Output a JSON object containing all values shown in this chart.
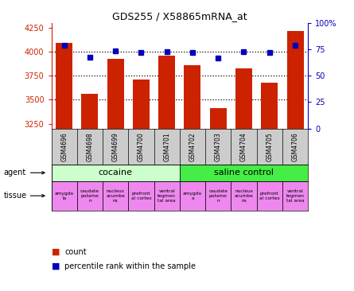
{
  "title": "GDS255 / X58865mRNA_at",
  "samples": [
    "GSM4696",
    "GSM4698",
    "GSM4699",
    "GSM4700",
    "GSM4701",
    "GSM4702",
    "GSM4703",
    "GSM4704",
    "GSM4705",
    "GSM4706"
  ],
  "counts": [
    4095,
    3560,
    3930,
    3710,
    3960,
    3860,
    3415,
    3830,
    3680,
    4215
  ],
  "percentiles": [
    79,
    68,
    74,
    72,
    73,
    72,
    67,
    73,
    72,
    79
  ],
  "ylim_left": [
    3200,
    4300
  ],
  "ylim_right": [
    0,
    100
  ],
  "yticks_left": [
    3250,
    3500,
    3750,
    4000,
    4250
  ],
  "yticks_right": [
    0,
    25,
    50,
    75,
    100
  ],
  "ytick_labels_right": [
    "0",
    "25",
    "50",
    "75",
    "100%"
  ],
  "bar_color": "#cc2200",
  "dot_color": "#0000bb",
  "agent_cocaine": "cocaine",
  "agent_saline": "saline control",
  "agent_cocaine_color": "#ccffcc",
  "agent_saline_color": "#44ee44",
  "tissue_pink_color": "#ee88ee",
  "tissues_cocaine": [
    "amygda\nla",
    "caudate\nputame\nn",
    "nucleus\nacumbe\nns",
    "prefront\nal cortex",
    "ventral\ntegmen\ntal area"
  ],
  "tissues_saline": [
    "amygda\na",
    "caudate\nputame\nn",
    "nucleus\nacumbe\nns",
    "prefront\nal cortex",
    "ventral\ntegmen\ntal area"
  ],
  "background_color": "#ffffff",
  "sample_bg_color": "#cccccc",
  "legend_count_color": "#cc2200",
  "legend_dot_color": "#0000bb",
  "n_cocaine": 5,
  "n_saline": 5
}
